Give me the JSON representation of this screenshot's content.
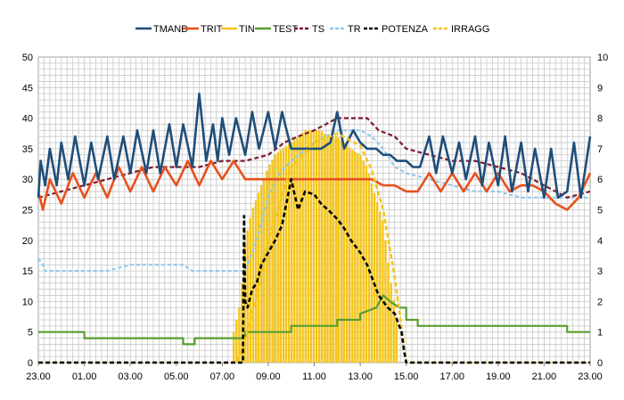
{
  "chart_data": {
    "type": "line",
    "title": "",
    "xlabel": "",
    "ylabel": "",
    "ylim": [
      0,
      50
    ],
    "ylim_right": [
      0,
      10
    ],
    "yticks_left": [
      "0",
      "5",
      "10",
      "15",
      "20",
      "25",
      "30",
      "35",
      "40",
      "45",
      "50"
    ],
    "yticks_right": [
      "0",
      "1",
      "2",
      "3",
      "4",
      "5",
      "6",
      "7",
      "8",
      "9",
      "10"
    ],
    "xticks": [
      "23.00",
      "01.00",
      "03.00",
      "05.00",
      "07.00",
      "09.00",
      "11.00",
      "13.00",
      "15.00",
      "17.00",
      "19.00",
      "21.00",
      "23.00"
    ],
    "xlim_hours": [
      0,
      24
    ],
    "grid": true,
    "legend_position": "top",
    "series": [
      {
        "name": "TMAND",
        "color": "#1f4e79",
        "style": "solid",
        "axis": "left",
        "x": [
          0,
          0.1,
          0.3,
          0.5,
          0.8,
          1.0,
          1.3,
          1.6,
          2.0,
          2.3,
          2.6,
          3.0,
          3.3,
          3.7,
          4.0,
          4.3,
          4.7,
          5.0,
          5.3,
          5.7,
          6.0,
          6.3,
          6.7,
          7.0,
          7.3,
          7.6,
          7.8,
          8.0,
          8.3,
          8.6,
          9.0,
          9.3,
          9.6,
          10.0,
          10.3,
          10.6,
          11.0,
          11.3,
          11.6,
          12.0,
          12.3,
          12.7,
          13.0,
          13.3,
          13.7,
          14.0,
          14.3,
          14.7,
          15.0,
          15.3,
          15.6,
          16.0,
          16.3,
          16.6,
          17.0,
          17.3,
          17.6,
          18.0,
          18.3,
          18.6,
          19.0,
          19.3,
          19.6,
          20.0,
          20.3,
          20.6,
          21.0,
          21.3,
          21.6,
          22.0,
          22.3,
          22.6,
          23.0,
          23.3,
          23.6,
          24.0
        ],
        "y": [
          27,
          33,
          29,
          35,
          29,
          36,
          30,
          37,
          29,
          36,
          30,
          37,
          30,
          37,
          31,
          38,
          31,
          38,
          31,
          39,
          32,
          39,
          32,
          44,
          33,
          39,
          33,
          40,
          34,
          40,
          34,
          41,
          35,
          41,
          35,
          41,
          35,
          35,
          35,
          35,
          35,
          36,
          41,
          35,
          38,
          36,
          35,
          35,
          34,
          34,
          33,
          33,
          32,
          32,
          37,
          31,
          37,
          31,
          36,
          30,
          37,
          29,
          36,
          29,
          37,
          28,
          36,
          28,
          35,
          27,
          35,
          27,
          28,
          36,
          27,
          37
        ]
      },
      {
        "name": "TRIT",
        "color": "#e8501e",
        "style": "solid",
        "axis": "left",
        "x": [
          0,
          0.2,
          0.5,
          1.0,
          1.5,
          2.0,
          2.5,
          3.0,
          3.5,
          4.0,
          4.5,
          5.0,
          5.5,
          6.0,
          6.5,
          7.0,
          7.5,
          8.0,
          8.5,
          9.0,
          9.5,
          10.0,
          10.5,
          11.0,
          11.5,
          12.0,
          12.5,
          13.0,
          13.5,
          14.0,
          14.5,
          15.0,
          15.5,
          16.0,
          16.5,
          17.0,
          17.5,
          18.0,
          18.5,
          19.0,
          19.5,
          20.0,
          20.5,
          21.0,
          21.5,
          22.0,
          22.5,
          23.0,
          23.5,
          24.0
        ],
        "y": [
          28,
          25,
          30,
          26,
          31,
          27,
          31,
          27,
          32,
          28,
          32,
          28,
          32,
          29,
          33,
          29,
          33,
          30,
          33,
          30,
          30,
          30,
          30,
          30,
          30,
          30,
          30,
          30,
          30,
          30,
          30,
          29,
          29,
          28,
          28,
          31,
          28,
          31,
          28,
          31,
          28,
          31,
          28,
          29,
          29,
          28,
          26,
          25,
          27,
          31
        ]
      },
      {
        "name": "TIN",
        "color": "#f5c518",
        "style": "bars",
        "axis": "left",
        "x": [
          8.5,
          8.8,
          9.0,
          9.3,
          9.5,
          9.8,
          10.0,
          10.3,
          10.6,
          11.0,
          11.3,
          11.6,
          12.0,
          12.3,
          12.6,
          13.0,
          13.3,
          13.6,
          14.0,
          14.3,
          14.6,
          15.0,
          15.3,
          15.6
        ],
        "y": [
          5,
          10,
          20,
          25,
          27,
          30,
          32,
          34,
          35,
          36,
          37,
          38,
          38,
          38,
          37,
          37,
          36,
          35,
          34,
          32,
          28,
          23,
          14,
          7
        ]
      },
      {
        "name": "TEST",
        "color": "#5a9e2f",
        "style": "solid",
        "axis": "left",
        "x": [
          0,
          2.0,
          2.0,
          6.3,
          6.3,
          6.8,
          6.8,
          7.0,
          7.0,
          9.0,
          9.0,
          10.0,
          10.0,
          11.0,
          11.0,
          12.0,
          12.0,
          13.0,
          13.0,
          14.0,
          14.0,
          14.7,
          15.0,
          15.3,
          15.7,
          16.0,
          16.0,
          16.5,
          16.5,
          19.0,
          19.0,
          23.0,
          23.0,
          24.0
        ],
        "y": [
          5,
          5,
          4,
          4,
          3,
          3,
          4,
          4,
          4,
          4,
          5,
          5,
          5,
          5,
          6,
          6,
          6,
          6,
          7,
          7,
          8,
          9,
          11,
          10,
          9,
          9,
          7,
          7,
          6,
          6,
          6,
          6,
          5,
          5
        ]
      },
      {
        "name": "TS",
        "color": "#7b1a2e",
        "style": "dashed",
        "axis": "left",
        "x": [
          0,
          1.0,
          2.0,
          3.0,
          4.0,
          5.0,
          6.0,
          7.0,
          8.0,
          9.0,
          10.0,
          10.7,
          11.3,
          12.0,
          12.5,
          13.0,
          13.7,
          14.3,
          14.8,
          15.5,
          16.0,
          17.0,
          18.0,
          19.0,
          20.0,
          21.0,
          22.0,
          23.0,
          24.0
        ],
        "y": [
          27,
          28,
          29,
          30,
          31,
          32,
          32,
          32,
          33,
          33,
          34,
          36,
          37,
          38,
          39,
          40,
          40,
          40,
          38,
          37,
          35,
          34,
          33,
          33,
          32,
          31,
          29,
          27,
          28
        ]
      },
      {
        "name": "TR",
        "color": "#8ecbf0",
        "style": "dashed",
        "axis": "left",
        "x": [
          0,
          0.2,
          0.3,
          1.0,
          3.0,
          4.0,
          6.3,
          6.7,
          8.0,
          9.0,
          9.5,
          10.0,
          10.5,
          11.0,
          12.0,
          13.0,
          14.0,
          14.5,
          15.0,
          15.5,
          16.0,
          17.0,
          18.0,
          19.0,
          20.0,
          21.0,
          22.0,
          24.0
        ],
        "y": [
          17,
          16,
          15,
          15,
          15,
          16,
          16,
          15,
          15,
          15,
          20,
          27,
          31,
          33,
          36,
          38,
          38,
          37,
          35,
          32,
          31,
          30,
          29,
          28,
          28,
          27,
          27,
          27
        ]
      },
      {
        "name": "POTENZA",
        "color": "#000000",
        "style": "dashed",
        "axis": "right",
        "x": [
          0,
          8.9,
          8.95,
          9.0,
          9.1,
          9.3,
          9.5,
          9.7,
          10.0,
          10.3,
          10.6,
          11.0,
          11.3,
          11.6,
          12.0,
          12.3,
          12.6,
          13.0,
          13.3,
          13.6,
          14.0,
          14.3,
          14.6,
          14.8,
          15.0,
          15.2,
          15.5,
          15.8,
          15.9,
          16.0,
          24.0
        ],
        "y": [
          0,
          0,
          4.8,
          2.0,
          1.8,
          2.4,
          2.6,
          3.2,
          3.6,
          4.0,
          4.5,
          6.0,
          5.0,
          5.6,
          5.5,
          5.2,
          5.0,
          4.7,
          4.4,
          4.0,
          3.6,
          3.2,
          2.6,
          2.2,
          2.0,
          1.8,
          1.6,
          1.0,
          0.4,
          0,
          0
        ]
      },
      {
        "name": "IRRAGG",
        "color": "#f5c518",
        "style": "dashed",
        "axis": "right",
        "x": [
          0,
          8.6,
          8.8,
          9.0,
          9.5,
          10.0,
          10.5,
          11.0,
          12.0,
          13.0,
          14.0,
          14.5,
          15.0,
          15.5,
          15.9,
          16.0,
          24.0
        ],
        "y": [
          0,
          0,
          0.3,
          0.8,
          2.2,
          4.0,
          5.2,
          6.4,
          7.2,
          7.5,
          7.1,
          6.3,
          5.0,
          2.8,
          0.6,
          0,
          0
        ]
      }
    ]
  }
}
